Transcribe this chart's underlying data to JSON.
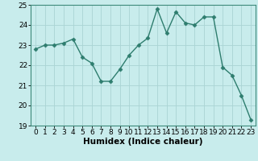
{
  "x": [
    0,
    1,
    2,
    3,
    4,
    5,
    6,
    7,
    8,
    9,
    10,
    11,
    12,
    13,
    14,
    15,
    16,
    17,
    18,
    19,
    20,
    21,
    22,
    23
  ],
  "y": [
    22.8,
    23.0,
    23.0,
    23.1,
    23.3,
    22.4,
    22.1,
    21.2,
    21.2,
    21.8,
    22.5,
    23.0,
    23.35,
    24.8,
    23.6,
    24.65,
    24.1,
    24.0,
    24.4,
    24.4,
    21.9,
    21.5,
    20.5,
    19.3
  ],
  "line_color": "#2e7d6e",
  "marker": "D",
  "marker_size": 2.5,
  "bg_color": "#c8ecec",
  "grid_color": "#aad4d4",
  "xlabel": "Humidex (Indice chaleur)",
  "ylim": [
    19,
    25
  ],
  "xlim": [
    -0.5,
    23.5
  ],
  "yticks": [
    19,
    20,
    21,
    22,
    23,
    24,
    25
  ],
  "xticks": [
    0,
    1,
    2,
    3,
    4,
    5,
    6,
    7,
    8,
    9,
    10,
    11,
    12,
    13,
    14,
    15,
    16,
    17,
    18,
    19,
    20,
    21,
    22,
    23
  ],
  "xlabel_fontsize": 7.5,
  "tick_fontsize": 6.5,
  "spine_color": "#3d8a7a"
}
